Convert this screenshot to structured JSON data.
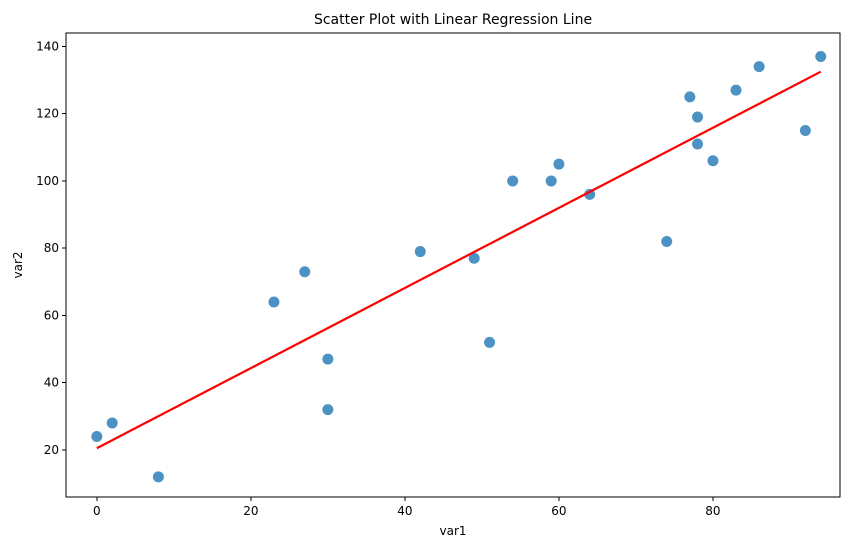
{
  "chart_data": {
    "type": "scatter",
    "title": "Scatter Plot with Linear Regression Line",
    "xlabel": "var1",
    "ylabel": "var2",
    "xlim": [
      -4,
      96.5
    ],
    "ylim": [
      6,
      144
    ],
    "xticks": [
      0,
      20,
      40,
      60,
      80
    ],
    "yticks": [
      20,
      40,
      60,
      80,
      100,
      120,
      140
    ],
    "grid": false,
    "series": [
      {
        "kind": "scatter",
        "color": "#1f77b4",
        "points": [
          {
            "x": 0,
            "y": 24
          },
          {
            "x": 2,
            "y": 28
          },
          {
            "x": 8,
            "y": 12
          },
          {
            "x": 23,
            "y": 64
          },
          {
            "x": 27,
            "y": 73
          },
          {
            "x": 30,
            "y": 47
          },
          {
            "x": 30,
            "y": 32
          },
          {
            "x": 42,
            "y": 79
          },
          {
            "x": 49,
            "y": 77
          },
          {
            "x": 51,
            "y": 52
          },
          {
            "x": 54,
            "y": 100
          },
          {
            "x": 59,
            "y": 100
          },
          {
            "x": 60,
            "y": 105
          },
          {
            "x": 64,
            "y": 96
          },
          {
            "x": 74,
            "y": 82
          },
          {
            "x": 77,
            "y": 125
          },
          {
            "x": 78,
            "y": 119
          },
          {
            "x": 78,
            "y": 111
          },
          {
            "x": 80,
            "y": 106
          },
          {
            "x": 83,
            "y": 127
          },
          {
            "x": 86,
            "y": 134
          },
          {
            "x": 92,
            "y": 115
          },
          {
            "x": 94,
            "y": 137
          }
        ]
      },
      {
        "kind": "line",
        "color": "#ff0000",
        "points": [
          {
            "x": 0,
            "y": 20.5
          },
          {
            "x": 94,
            "y": 132.5
          }
        ]
      }
    ]
  }
}
